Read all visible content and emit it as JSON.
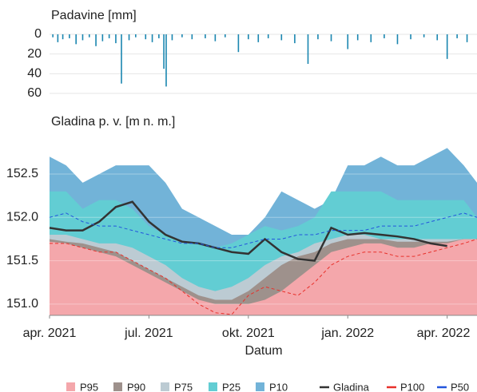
{
  "chart_data": [
    {
      "type": "bar",
      "title": "Padavine [mm]",
      "color": "#1a86b0",
      "x": [
        0.1,
        0.25,
        0.4,
        0.6,
        0.8,
        1.0,
        1.2,
        1.4,
        1.6,
        1.8,
        2.0,
        2.17,
        2.4,
        2.6,
        2.9,
        3.1,
        3.3,
        3.45,
        3.52,
        3.7,
        4.0,
        4.3,
        4.7,
        5.0,
        5.3,
        5.7,
        6.0,
        6.3,
        6.6,
        7.0,
        7.4,
        7.8,
        8.1,
        8.5,
        9.0,
        9.3,
        9.7,
        10.1,
        10.5,
        10.9,
        11.3,
        11.7,
        12.0,
        12.3,
        12.6
      ],
      "values": [
        3,
        8,
        5,
        4,
        10,
        6,
        3,
        12,
        7,
        4,
        9,
        50,
        6,
        3,
        5,
        8,
        4,
        35,
        53,
        6,
        3,
        5,
        4,
        7,
        3,
        18,
        5,
        8,
        4,
        6,
        9,
        30,
        5,
        7,
        15,
        6,
        8,
        4,
        10,
        5,
        3,
        6,
        25,
        4,
        8
      ],
      "xlim": [
        0,
        12.9
      ],
      "ylim": [
        0,
        60
      ],
      "yticks": [
        0,
        20,
        40,
        60
      ],
      "inverted": true
    },
    {
      "type": "area",
      "title": "Gladina p. v. [m n. m.]",
      "xlabel": "Datum",
      "x": [
        0,
        0.5,
        1,
        1.5,
        2,
        2.5,
        3,
        3.5,
        4,
        4.5,
        5,
        5.5,
        6,
        6.5,
        7,
        7.5,
        8,
        8.5,
        9,
        9.5,
        10,
        10.5,
        11,
        11.5,
        12,
        12.5,
        12.9
      ],
      "xlim": [
        0,
        12.9
      ],
      "xticks": [
        {
          "value": 0,
          "label": "apr. 2021"
        },
        {
          "value": 3,
          "label": "jul. 2021"
        },
        {
          "value": 6,
          "label": "okt. 2021"
        },
        {
          "value": 9,
          "label": "jan. 2022"
        },
        {
          "value": 12,
          "label": "apr. 2022"
        }
      ],
      "ylim": [
        150.87,
        152.85
      ],
      "yticks": [
        {
          "value": 151.0,
          "label": "151.0"
        },
        {
          "value": 151.5,
          "label": "151.5"
        },
        {
          "value": 152.0,
          "label": "152.0"
        },
        {
          "value": 152.5,
          "label": "152.5"
        }
      ],
      "series": [
        {
          "name": "P95",
          "color": "#f4a7ab",
          "kind": "area",
          "values": [
            151.72,
            151.7,
            151.65,
            151.6,
            151.55,
            151.45,
            151.35,
            151.25,
            151.15,
            151.05,
            151.0,
            151.0,
            151.0,
            151.05,
            151.15,
            151.3,
            151.45,
            151.6,
            151.65,
            151.7,
            151.7,
            151.65,
            151.65,
            151.7,
            151.7,
            151.75,
            151.75
          ]
        },
        {
          "name": "P90",
          "color": "#9e918c",
          "kind": "area",
          "values": [
            151.75,
            151.72,
            151.7,
            151.65,
            151.6,
            151.5,
            151.4,
            151.3,
            151.2,
            151.1,
            151.05,
            151.05,
            151.15,
            151.3,
            151.45,
            151.55,
            151.6,
            151.7,
            151.75,
            151.75,
            151.75,
            151.72,
            151.72,
            151.72,
            151.72,
            151.75,
            151.75
          ]
        },
        {
          "name": "P75",
          "color": "#bccbd3",
          "kind": "area",
          "values": [
            151.8,
            151.8,
            151.75,
            151.7,
            151.7,
            151.65,
            151.55,
            151.45,
            151.3,
            151.2,
            151.15,
            151.2,
            151.3,
            151.45,
            151.55,
            151.6,
            151.7,
            151.75,
            151.8,
            151.8,
            151.75,
            151.75,
            151.75,
            151.75,
            151.75,
            151.75,
            151.75
          ]
        },
        {
          "name": "P25",
          "color": "#62cdd3",
          "kind": "area",
          "values": [
            152.3,
            152.3,
            152.1,
            152.2,
            152.2,
            152.1,
            151.9,
            151.8,
            151.7,
            151.7,
            151.65,
            151.7,
            151.8,
            151.9,
            151.85,
            151.9,
            152.0,
            152.3,
            152.3,
            152.3,
            152.3,
            152.2,
            152.2,
            152.2,
            152.2,
            152.2,
            152.0
          ]
        },
        {
          "name": "P10",
          "color": "#72b3d8",
          "kind": "area",
          "values": [
            152.7,
            152.6,
            152.4,
            152.5,
            152.6,
            152.6,
            152.6,
            152.4,
            152.1,
            152.0,
            151.9,
            151.8,
            151.8,
            152.0,
            152.3,
            152.2,
            152.1,
            152.2,
            152.6,
            152.6,
            152.7,
            152.6,
            152.6,
            152.7,
            152.8,
            152.6,
            152.4
          ]
        },
        {
          "name": "Gladina",
          "color": "#333333",
          "kind": "line",
          "values": [
            151.88,
            151.85,
            151.85,
            151.95,
            152.12,
            152.18,
            151.95,
            151.8,
            151.72,
            151.7,
            151.65,
            151.6,
            151.58,
            151.75,
            151.6,
            151.52,
            151.5,
            151.88,
            151.8,
            151.82,
            151.8,
            151.78,
            151.75,
            151.7,
            151.67,
            null,
            null
          ]
        },
        {
          "name": "P100",
          "color": "#e8302a",
          "kind": "dashed",
          "values": [
            151.7,
            151.7,
            151.65,
            151.6,
            151.6,
            151.5,
            151.4,
            151.3,
            151.15,
            151.0,
            150.9,
            150.88,
            151.1,
            151.2,
            151.15,
            151.1,
            151.25,
            151.45,
            151.55,
            151.6,
            151.6,
            151.55,
            151.55,
            151.6,
            151.65,
            151.7,
            151.75
          ]
        },
        {
          "name": "P50",
          "color": "#2255dd",
          "kind": "dashed",
          "values": [
            152.0,
            152.05,
            151.95,
            151.9,
            151.9,
            151.85,
            151.8,
            151.75,
            151.7,
            151.7,
            151.65,
            151.65,
            151.7,
            151.75,
            151.75,
            151.8,
            151.8,
            151.85,
            151.85,
            151.85,
            151.9,
            151.9,
            151.9,
            151.95,
            152.0,
            152.05,
            152.0
          ]
        }
      ]
    }
  ]
}
